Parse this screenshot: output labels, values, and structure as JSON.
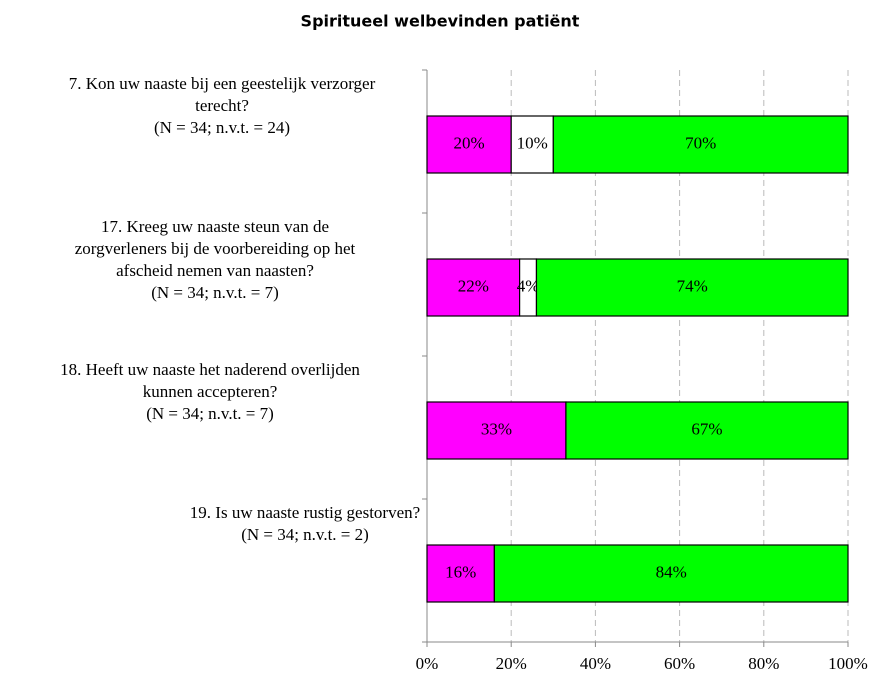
{
  "chart_data": {
    "type": "stacked_bar_horizontal",
    "title": "Spiritueel welbevinden patiënt",
    "categories": [
      [
        "7. Kon uw naaste bij een geestelijk verzorger",
        "terecht?",
        "(N = 34; n.v.t. = 24)"
      ],
      [
        "17. Kreeg uw naaste steun van de",
        "zorgverleners bij de voorbereiding op het",
        "afscheid nemen van naasten?",
        "(N = 34; n.v.t. = 7)"
      ],
      [
        "18. Heeft uw naaste het naderend overlijden",
        "kunnen accepteren?",
        "(N = 34; n.v.t. = 7)"
      ],
      [
        "19. Is uw naaste rustig gestorven?",
        "(N = 34; n.v.t. = 2)"
      ]
    ],
    "series": [
      {
        "color": "#ff00ff",
        "values": [
          20,
          22,
          33,
          16
        ],
        "value_labels": [
          "20%",
          "22%",
          "33%",
          "16%"
        ]
      },
      {
        "color": "#ffffff",
        "values": [
          10,
          4,
          null,
          null
        ],
        "value_labels": [
          "10%",
          "4%",
          null,
          null
        ]
      },
      {
        "color": "#00ff00",
        "values": [
          70,
          74,
          67,
          84
        ],
        "value_labels": [
          "70%",
          "74%",
          "67%",
          "84%"
        ]
      }
    ],
    "xlim": [
      0,
      100
    ],
    "xticks": [
      {
        "value": 0,
        "label": "0%"
      },
      {
        "value": 20,
        "label": "20%"
      },
      {
        "value": 40,
        "label": "40%"
      },
      {
        "value": 60,
        "label": "60%"
      },
      {
        "value": 80,
        "label": "80%"
      },
      {
        "value": 100,
        "label": "100%"
      }
    ],
    "grid": true
  }
}
